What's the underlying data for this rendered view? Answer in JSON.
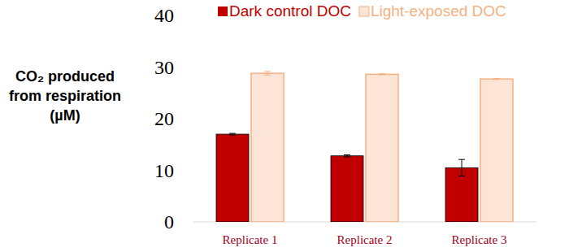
{
  "chart_data": {
    "type": "bar",
    "y_label": [
      "CO₂ produced",
      "from respiration",
      "(µM)"
    ],
    "categories": [
      "Replicate 1",
      "Replicate 2",
      "Replicate 3"
    ],
    "series": [
      {
        "name": "Dark control DOC",
        "color": "#c00000",
        "values": [
          17.0,
          12.8,
          10.5
        ],
        "errors": [
          0.15,
          0.2,
          1.6
        ]
      },
      {
        "name": "Light-exposed DOC",
        "color": "#fce4d6",
        "values": [
          28.8,
          28.6,
          27.7
        ],
        "errors": [
          0.35,
          0.1,
          0.1
        ]
      }
    ],
    "ylim": [
      0,
      40
    ],
    "yticks": [
      0,
      10,
      20,
      30,
      40
    ],
    "grid": false,
    "legend": "top"
  }
}
